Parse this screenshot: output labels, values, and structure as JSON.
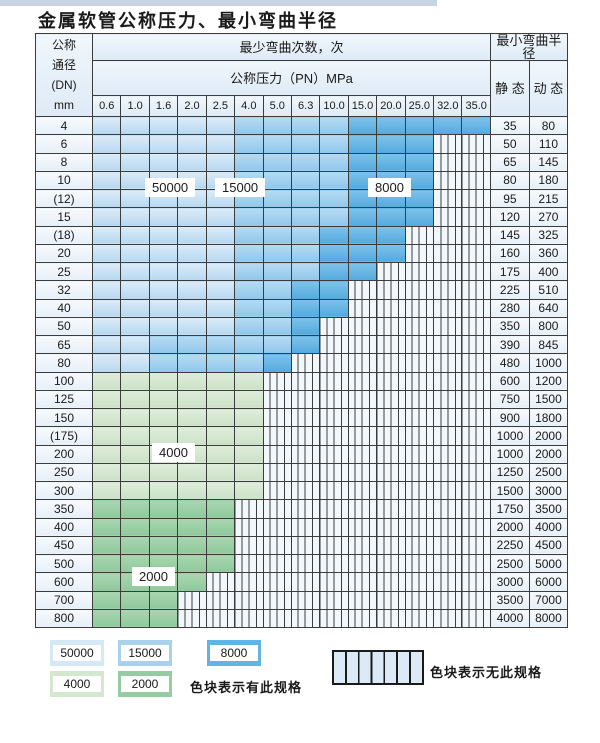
{
  "title": "金属软管公称压力、最小弯曲半径",
  "table": {
    "corner": [
      "公称",
      "通径",
      "(DN)",
      "mm"
    ],
    "cycles_header": "最少弯曲次数，次",
    "pressure_header": "公称压力（PN）MPa",
    "pressures": [
      "0.6",
      "1.0",
      "1.6",
      "2.0",
      "2.5",
      "4.0",
      "5.0",
      "6.3",
      "10.0",
      "15.0",
      "20.0",
      "25.0",
      "32.0",
      "35.0"
    ],
    "radius_header": "最小弯曲半径",
    "static_header": "静 态",
    "dynamic_header": "动 态",
    "rows": [
      {
        "dn": "4",
        "zone": "blue",
        "light_end": 4,
        "mid_end": 8,
        "colored_end": 13,
        "static": "35",
        "dynamic": "80"
      },
      {
        "dn": "6",
        "zone": "blue",
        "light_end": 4,
        "mid_end": 8,
        "colored_end": 11,
        "static": "50",
        "dynamic": "110"
      },
      {
        "dn": "8",
        "zone": "blue",
        "light_end": 4,
        "mid_end": 8,
        "colored_end": 11,
        "static": "65",
        "dynamic": "145"
      },
      {
        "dn": "10",
        "zone": "blue",
        "light_end": 4,
        "mid_end": 8,
        "colored_end": 11,
        "static": "80",
        "dynamic": "180"
      },
      {
        "dn": "(12)",
        "zone": "blue",
        "light_end": 4,
        "mid_end": 8,
        "colored_end": 11,
        "static": "95",
        "dynamic": "215"
      },
      {
        "dn": "15",
        "zone": "blue",
        "light_end": 4,
        "mid_end": 8,
        "colored_end": 11,
        "static": "120",
        "dynamic": "270"
      },
      {
        "dn": "(18)",
        "zone": "blue",
        "light_end": 4,
        "mid_end": 7,
        "colored_end": 10,
        "static": "145",
        "dynamic": "325"
      },
      {
        "dn": "20",
        "zone": "blue",
        "light_end": 4,
        "mid_end": 7,
        "colored_end": 10,
        "static": "160",
        "dynamic": "360"
      },
      {
        "dn": "25",
        "zone": "blue",
        "light_end": 4,
        "mid_end": 7,
        "colored_end": 9,
        "static": "175",
        "dynamic": "400"
      },
      {
        "dn": "32",
        "zone": "blue",
        "light_end": 4,
        "mid_end": 6,
        "colored_end": 8,
        "static": "225",
        "dynamic": "510"
      },
      {
        "dn": "40",
        "zone": "blue",
        "light_end": 4,
        "mid_end": 6,
        "colored_end": 8,
        "static": "280",
        "dynamic": "640"
      },
      {
        "dn": "50",
        "zone": "blue",
        "light_end": 4,
        "mid_end": 6,
        "colored_end": 7,
        "static": "350",
        "dynamic": "800"
      },
      {
        "dn": "65",
        "zone": "blue",
        "light_end": 1,
        "mid_end": 6,
        "colored_end": 7,
        "static": "390",
        "dynamic": "845"
      },
      {
        "dn": "80",
        "zone": "blue",
        "light_end": 1,
        "mid_end": 5,
        "colored_end": 6,
        "static": "480",
        "dynamic": "1000"
      },
      {
        "dn": "100",
        "zone": "green4",
        "light_end": null,
        "mid_end": null,
        "colored_end": 5,
        "static": "600",
        "dynamic": "1200"
      },
      {
        "dn": "125",
        "zone": "green4",
        "light_end": null,
        "mid_end": null,
        "colored_end": 5,
        "static": "750",
        "dynamic": "1500"
      },
      {
        "dn": "150",
        "zone": "green4",
        "light_end": null,
        "mid_end": null,
        "colored_end": 5,
        "static": "900",
        "dynamic": "1800"
      },
      {
        "dn": "(175)",
        "zone": "green4",
        "light_end": null,
        "mid_end": null,
        "colored_end": 5,
        "static": "1000",
        "dynamic": "2000"
      },
      {
        "dn": "200",
        "zone": "green4",
        "light_end": null,
        "mid_end": null,
        "colored_end": 5,
        "static": "1000",
        "dynamic": "2000"
      },
      {
        "dn": "250",
        "zone": "green4",
        "light_end": null,
        "mid_end": null,
        "colored_end": 5,
        "static": "1250",
        "dynamic": "2500"
      },
      {
        "dn": "300",
        "zone": "green4",
        "light_end": null,
        "mid_end": null,
        "colored_end": 5,
        "static": "1500",
        "dynamic": "3000"
      },
      {
        "dn": "350",
        "zone": "green2",
        "light_end": null,
        "mid_end": null,
        "colored_end": 4,
        "static": "1750",
        "dynamic": "3500"
      },
      {
        "dn": "400",
        "zone": "green2",
        "light_end": null,
        "mid_end": null,
        "colored_end": 4,
        "static": "2000",
        "dynamic": "4000"
      },
      {
        "dn": "450",
        "zone": "green2",
        "light_end": null,
        "mid_end": null,
        "colored_end": 4,
        "static": "2250",
        "dynamic": "4500"
      },
      {
        "dn": "500",
        "zone": "green2",
        "light_end": null,
        "mid_end": null,
        "colored_end": 4,
        "static": "2500",
        "dynamic": "5000"
      },
      {
        "dn": "600",
        "zone": "green2",
        "light_end": null,
        "mid_end": null,
        "colored_end": 3,
        "static": "3000",
        "dynamic": "6000"
      },
      {
        "dn": "700",
        "zone": "green2",
        "light_end": null,
        "mid_end": null,
        "colored_end": 2,
        "static": "3500",
        "dynamic": "7000"
      },
      {
        "dn": "800",
        "zone": "green2",
        "light_end": null,
        "mid_end": null,
        "colored_end": 2,
        "static": "4000",
        "dynamic": "8000"
      }
    ]
  },
  "zone_labels": [
    {
      "text": "50000"
    },
    {
      "text": "15000"
    },
    {
      "text": "8000"
    },
    {
      "text": "4000"
    },
    {
      "text": "2000"
    }
  ],
  "legend": {
    "items": [
      {
        "id": "c50000",
        "label": "50000",
        "color": "#d5e8f6"
      },
      {
        "id": "c15000",
        "label": "15000",
        "color": "#a8d1ee"
      },
      {
        "id": "c8000",
        "label": "8000",
        "color": "#63b4e3"
      },
      {
        "id": "c4000",
        "label": "4000",
        "color": "#d5e7d1"
      },
      {
        "id": "c2000",
        "label": "2000",
        "color": "#96cca1"
      }
    ],
    "has_spec_note": "色块表示有此规格",
    "no_spec_note": "色块表示无此规格"
  },
  "colors": {
    "c50000": "#d5e8f6",
    "c15000": "#a8d1ee",
    "c8000": "#63b4e3",
    "c4000": "#d5e7d1",
    "c2000": "#96cca1",
    "no_spec_fill": "#dce9f6",
    "grid_line": "#3c3c3c"
  }
}
